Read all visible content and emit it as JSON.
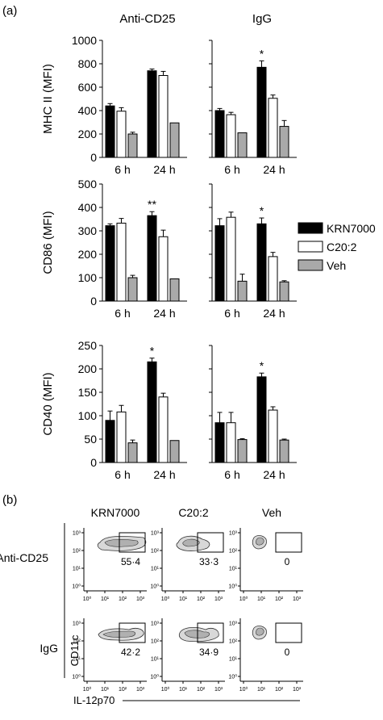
{
  "panel_labels": {
    "a": "(a)",
    "b": "(b)"
  },
  "columns": [
    "Anti-CD25",
    "IgG"
  ],
  "x_categories": [
    "6 h",
    "24 h"
  ],
  "legend": [
    {
      "name": "KRN7000",
      "color": "#000000"
    },
    {
      "name": "C20:2",
      "color": "#ffffff"
    },
    {
      "name": "Veh",
      "color": "#a9a9a9"
    }
  ],
  "chart_data": [
    {
      "type": "bar",
      "ylabel": "MHC II (MFI)",
      "ylim": [
        0,
        1000
      ],
      "yticks": [
        0,
        200,
        400,
        600,
        800,
        1000
      ],
      "panels": [
        {
          "column": "Anti-CD25",
          "values": [
            [
              440,
              395,
              200
            ],
            [
              740,
              700,
              295
            ]
          ],
          "errors": [
            [
              20,
              30,
              15
            ],
            [
              15,
              35,
              0
            ]
          ],
          "marks": [
            "",
            ""
          ]
        },
        {
          "column": "IgG",
          "values": [
            [
              400,
              365,
              210
            ],
            [
              770,
              505,
              265
            ]
          ],
          "errors": [
            [
              18,
              20,
              0
            ],
            [
              55,
              28,
              50
            ]
          ],
          "marks": [
            "",
            "*"
          ]
        }
      ]
    },
    {
      "type": "bar",
      "ylabel": "CD86 (MFI)",
      "ylim": [
        0,
        500
      ],
      "yticks": [
        0,
        100,
        200,
        300,
        400,
        500
      ],
      "panels": [
        {
          "column": "Anti-CD25",
          "values": [
            [
              322,
              333,
              100
            ],
            [
              365,
              275,
              95
            ]
          ],
          "errors": [
            [
              8,
              20,
              10
            ],
            [
              17,
              28,
              0
            ]
          ],
          "marks": [
            "",
            "**"
          ]
        },
        {
          "column": "IgG",
          "values": [
            [
              322,
              358,
              85
            ],
            [
              330,
              190,
              82
            ]
          ],
          "errors": [
            [
              30,
              22,
              30
            ],
            [
              25,
              18,
              5
            ]
          ],
          "marks": [
            "",
            "*"
          ]
        }
      ]
    },
    {
      "type": "bar",
      "ylabel": "CD40 (MFI)",
      "ylim": [
        0,
        250
      ],
      "yticks": [
        0,
        50,
        100,
        150,
        200,
        250
      ],
      "panels": [
        {
          "column": "Anti-CD25",
          "values": [
            [
              90,
              108,
              42
            ],
            [
              215,
              140,
              47
            ]
          ],
          "errors": [
            [
              20,
              14,
              6
            ],
            [
              8,
              8,
              0
            ]
          ],
          "marks": [
            "",
            "*"
          ]
        },
        {
          "column": "IgG",
          "values": [
            [
              85,
              85,
              49
            ],
            [
              183,
              112,
              48
            ]
          ],
          "errors": [
            [
              22,
              22,
              2
            ],
            [
              8,
              7,
              2
            ]
          ],
          "marks": [
            "",
            "*"
          ]
        }
      ]
    }
  ],
  "flow": {
    "columns": [
      "KRN7000",
      "C20:2",
      "Veh"
    ],
    "rows": [
      "Anti-CD25",
      "IgG"
    ],
    "values": [
      [
        "55·4",
        "33·3",
        "0"
      ],
      [
        "42·2",
        "34·9",
        "0"
      ]
    ],
    "xlabel": "IL-12p70",
    "ylabel": "CD11c",
    "tick_labels": [
      "10⁰",
      "10¹",
      "10²",
      "10³"
    ]
  }
}
